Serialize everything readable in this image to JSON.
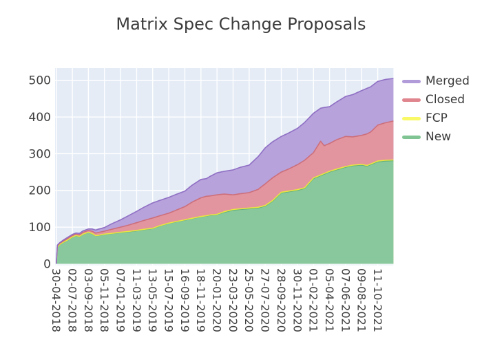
{
  "header": {
    "title": "Matrix Spec Change Proposals"
  },
  "colors": {
    "page_background": "#ffffff",
    "plot_background": "#e5ecf6",
    "grid": "#ffffff",
    "tick_label": "#3f3f3f",
    "title": "#3c3c3c"
  },
  "legend": {
    "items": [
      {
        "label": "Merged",
        "swatch_color": "#b19bd8"
      },
      {
        "label": "Closed",
        "swatch_color": "#e0858e"
      },
      {
        "label": "FCP",
        "swatch_color": "#f9f968"
      },
      {
        "label": "New",
        "swatch_color": "#7fc492"
      }
    ]
  },
  "series_styles": [
    {
      "name": "New",
      "fill": "#89c89c",
      "line": "#5fae7b"
    },
    {
      "name": "FCP",
      "fill": "#f7f77e",
      "line": "#e9e63f"
    },
    {
      "name": "Closed",
      "fill": "#e2959e",
      "line": "#cc6f7c"
    },
    {
      "name": "Merged",
      "fill": "#b7a2db",
      "line": "#8f6fc4"
    }
  ],
  "chart_data": {
    "type": "area",
    "stacked": true,
    "title": "Matrix Spec Change Proposals",
    "stack_order_bottom_to_top": [
      "New",
      "FCP",
      "Closed",
      "Merged"
    ],
    "legend_order_top_to_bottom": [
      "Merged",
      "Closed",
      "FCP",
      "New"
    ],
    "x_axis": {
      "start_date": "30-04-2018",
      "tick_interval_weeks": 9,
      "tick_labels": [
        "30-04-2018",
        "02-07-2018",
        "03-09-2018",
        "05-11-2018",
        "07-01-2019",
        "11-03-2019",
        "13-05-2019",
        "15-07-2019",
        "16-09-2019",
        "18-11-2019",
        "20-01-2020",
        "23-03-2020",
        "25-05-2020",
        "27-07-2020",
        "28-09-2020",
        "30-11-2020",
        "01-02-2021",
        "05-04-2021",
        "07-06-2021",
        "09-08-2021",
        "11-10-2021"
      ]
    },
    "y_axis": {
      "ticks": [
        0,
        100,
        200,
        300,
        400,
        500
      ],
      "range": [
        0,
        533
      ]
    },
    "grid": true,
    "legend_position": "right",
    "points_columns": [
      "weeks_since_start",
      "New",
      "FCP",
      "Closed",
      "Merged"
    ],
    "points": [
      [
        0,
        0,
        0,
        0,
        0
      ],
      [
        0.6,
        45,
        1,
        3,
        2
      ],
      [
        2,
        52,
        1,
        3,
        2
      ],
      [
        4,
        58,
        1,
        3,
        3
      ],
      [
        6,
        63,
        1,
        4,
        3
      ],
      [
        9,
        72,
        1,
        4,
        3
      ],
      [
        11,
        76,
        1,
        4,
        3
      ],
      [
        13,
        74,
        1,
        4,
        4
      ],
      [
        15,
        80,
        1,
        5,
        4
      ],
      [
        18,
        85,
        1,
        5,
        4
      ],
      [
        20,
        82,
        1,
        6,
        6
      ],
      [
        22,
        76,
        1,
        7,
        8
      ],
      [
        24,
        77,
        1,
        8,
        9
      ],
      [
        27,
        80,
        1,
        8,
        10
      ],
      [
        31,
        82,
        1,
        11,
        15
      ],
      [
        36,
        85,
        1,
        14,
        20
      ],
      [
        40,
        87,
        1,
        17,
        25
      ],
      [
        45,
        90,
        1,
        21,
        31
      ],
      [
        49,
        93,
        1,
        24,
        36
      ],
      [
        54,
        96,
        1,
        28,
        41
      ],
      [
        58,
        103,
        1,
        27,
        42
      ],
      [
        63,
        110,
        1,
        27,
        43
      ],
      [
        67,
        114,
        1,
        31,
        43
      ],
      [
        72,
        119,
        1,
        36,
        42
      ],
      [
        76,
        123,
        1,
        44,
        46
      ],
      [
        81,
        128,
        1,
        51,
        50
      ],
      [
        84,
        130,
        1,
        53,
        48
      ],
      [
        86,
        132,
        1,
        52,
        53
      ],
      [
        90,
        134,
        1,
        53,
        60
      ],
      [
        94,
        140,
        2,
        48,
        62
      ],
      [
        99,
        146,
        2,
        40,
        68
      ],
      [
        103,
        148,
        2,
        41,
        72
      ],
      [
        108,
        150,
        2,
        42,
        75
      ],
      [
        113,
        152,
        2,
        49,
        89
      ],
      [
        117,
        157,
        2,
        59,
        98
      ],
      [
        121,
        170,
        2,
        62,
        98
      ],
      [
        126,
        193,
        2,
        55,
        97
      ],
      [
        130,
        196,
        2,
        60,
        98
      ],
      [
        135,
        200,
        2,
        68,
        99
      ],
      [
        139,
        205,
        2,
        75,
        103
      ],
      [
        144,
        232,
        2,
        69,
        107
      ],
      [
        148,
        240,
        2,
        92,
        90
      ],
      [
        150,
        244,
        2,
        76,
        104
      ],
      [
        153,
        250,
        2,
        76,
        100
      ],
      [
        157,
        256,
        2,
        80,
        103
      ],
      [
        162,
        263,
        2,
        82,
        109
      ],
      [
        166,
        267,
        2,
        77,
        115
      ],
      [
        171,
        269,
        2,
        79,
        122
      ],
      [
        174,
        266,
        2,
        86,
        124
      ],
      [
        176,
        270,
        2,
        87,
        123
      ],
      [
        180,
        278,
        2,
        98,
        119
      ],
      [
        184,
        280,
        2,
        102,
        118
      ],
      [
        188.8,
        281,
        2,
        106,
        116
      ]
    ]
  }
}
